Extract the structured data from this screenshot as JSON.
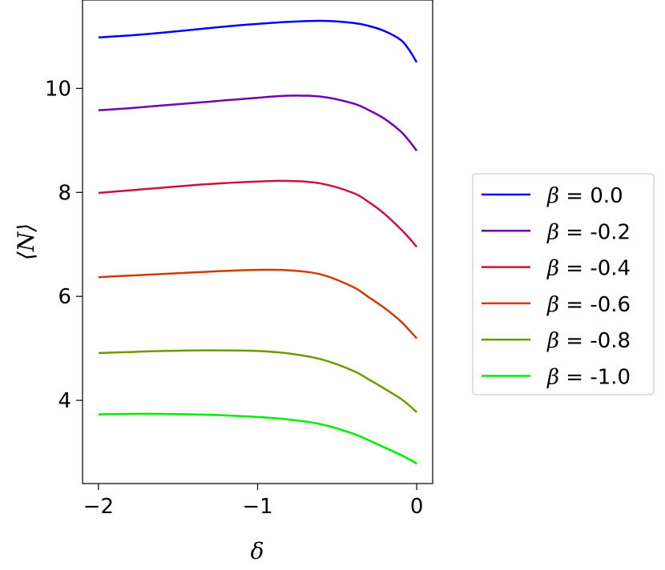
{
  "chart_data": {
    "type": "line",
    "xlabel": "δ",
    "ylabel": "⟨N⟩",
    "xlim": [
      -2.1,
      0.1
    ],
    "ylim": [
      2.4,
      11.7
    ],
    "xticks": [
      {
        "value": -2,
        "label": "−2"
      },
      {
        "value": -1,
        "label": "−1"
      },
      {
        "value": 0,
        "label": "0"
      }
    ],
    "yticks": [
      {
        "value": 4,
        "label": "4"
      },
      {
        "value": 6,
        "label": "6"
      },
      {
        "value": 8,
        "label": "8"
      },
      {
        "value": 10,
        "label": "10"
      }
    ],
    "grid": false,
    "legend_position": "outside-right",
    "x": [
      -2.0,
      -1.8,
      -1.6,
      -1.4,
      -1.2,
      -1.0,
      -0.8,
      -0.6,
      -0.4,
      -0.3,
      -0.2,
      -0.1,
      -0.05,
      0.0
    ],
    "series": [
      {
        "legend_var": "β",
        "legend_value": " = 0.0",
        "color": "#0000ff",
        "values": [
          10.98,
          11.02,
          11.07,
          11.13,
          11.19,
          11.24,
          11.28,
          11.3,
          11.26,
          11.2,
          11.1,
          10.93,
          10.75,
          10.5
        ]
      },
      {
        "legend_var": "β",
        "legend_value": " = -0.2",
        "color": "#7000b0",
        "values": [
          9.58,
          9.62,
          9.67,
          9.72,
          9.77,
          9.82,
          9.86,
          9.84,
          9.71,
          9.58,
          9.41,
          9.17,
          9.0,
          8.8
        ]
      },
      {
        "legend_var": "β",
        "legend_value": " = -0.4",
        "color": "#d0103c",
        "values": [
          7.99,
          8.04,
          8.09,
          8.14,
          8.18,
          8.21,
          8.22,
          8.17,
          7.99,
          7.81,
          7.58,
          7.29,
          7.13,
          6.95
        ]
      },
      {
        "legend_var": "β",
        "legend_value": " = -0.6",
        "color": "#d03a08",
        "values": [
          6.37,
          6.4,
          6.43,
          6.46,
          6.49,
          6.51,
          6.5,
          6.42,
          6.18,
          5.98,
          5.77,
          5.52,
          5.36,
          5.19
        ]
      },
      {
        "legend_var": "β",
        "legend_value": " = -0.8",
        "color": "#6a9a00",
        "values": [
          4.91,
          4.93,
          4.95,
          4.96,
          4.96,
          4.95,
          4.9,
          4.79,
          4.57,
          4.4,
          4.22,
          4.03,
          3.91,
          3.77
        ]
      },
      {
        "legend_var": "β",
        "legend_value": " = -1.0",
        "color": "#00ee00",
        "values": [
          3.73,
          3.74,
          3.74,
          3.73,
          3.71,
          3.68,
          3.63,
          3.54,
          3.36,
          3.23,
          3.09,
          2.95,
          2.87,
          2.78
        ]
      }
    ]
  }
}
